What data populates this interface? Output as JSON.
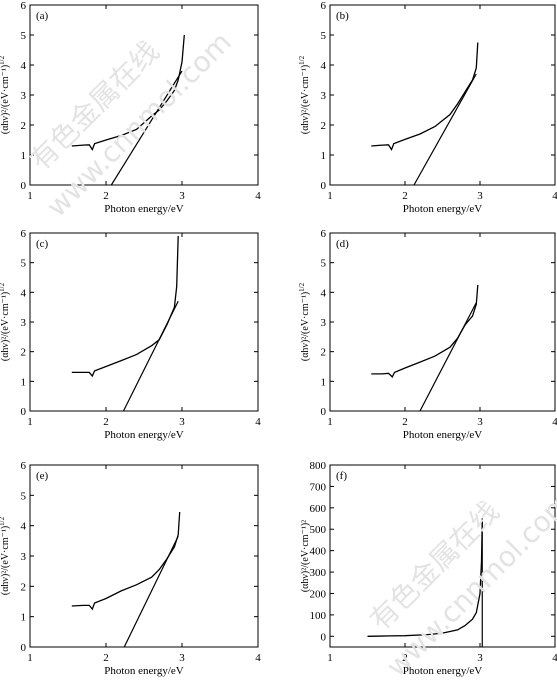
{
  "chart_data": [
    {
      "type": "line",
      "panel_label": "(a)",
      "xlabel": "Photon energy/eV",
      "ylabel": "(αhν)²/(eV·cm⁻¹)^1/2",
      "xlim": [
        1,
        4
      ],
      "ylim": [
        0,
        6
      ],
      "xticks": [
        "1",
        "2",
        "3",
        "4"
      ],
      "yticks": [
        "0",
        "1",
        "2",
        "3",
        "4",
        "5",
        "6"
      ],
      "grid": false,
      "curve": [
        [
          1.55,
          1.3
        ],
        [
          1.7,
          1.33
        ],
        [
          1.78,
          1.34
        ],
        [
          1.82,
          1.18
        ],
        [
          1.85,
          1.38
        ],
        [
          2.0,
          1.5
        ],
        [
          2.2,
          1.65
        ],
        [
          2.4,
          1.85
        ],
        [
          2.6,
          2.3
        ],
        [
          2.7,
          2.5
        ],
        [
          2.8,
          2.8
        ],
        [
          2.9,
          3.15
        ],
        [
          2.95,
          3.5
        ],
        [
          3.0,
          4.1
        ],
        [
          3.03,
          5.0
        ]
      ],
      "tangent": [
        [
          2.07,
          0
        ],
        [
          3.0,
          3.8
        ]
      ]
    },
    {
      "type": "line",
      "panel_label": "(b)",
      "xlabel": "Photon energy/eV",
      "ylabel": "(αhν)²/(eV·cm⁻¹)^1/2",
      "xlim": [
        1,
        4
      ],
      "ylim": [
        0,
        6
      ],
      "xticks": [
        "1",
        "2",
        "3",
        "4"
      ],
      "yticks": [
        "0",
        "1",
        "2",
        "3",
        "4",
        "5",
        "6"
      ],
      "grid": false,
      "curve": [
        [
          1.55,
          1.3
        ],
        [
          1.7,
          1.33
        ],
        [
          1.78,
          1.34
        ],
        [
          1.82,
          1.18
        ],
        [
          1.85,
          1.38
        ],
        [
          2.0,
          1.52
        ],
        [
          2.2,
          1.7
        ],
        [
          2.4,
          1.95
        ],
        [
          2.6,
          2.35
        ],
        [
          2.7,
          2.7
        ],
        [
          2.8,
          3.1
        ],
        [
          2.9,
          3.5
        ],
        [
          2.95,
          3.9
        ],
        [
          2.97,
          4.75
        ]
      ],
      "tangent": [
        [
          2.12,
          0
        ],
        [
          2.95,
          3.7
        ]
      ]
    },
    {
      "type": "line",
      "panel_label": "(c)",
      "xlabel": "Photon energy/eV",
      "ylabel": "(αhν)²/(eV·cm⁻¹)^1/2",
      "xlim": [
        1,
        4
      ],
      "ylim": [
        0,
        6
      ],
      "xticks": [
        "1",
        "2",
        "3",
        "4"
      ],
      "yticks": [
        "0",
        "1",
        "2",
        "3",
        "4",
        "5",
        "6"
      ],
      "grid": false,
      "curve": [
        [
          1.55,
          1.3
        ],
        [
          1.7,
          1.3
        ],
        [
          1.78,
          1.3
        ],
        [
          1.82,
          1.18
        ],
        [
          1.85,
          1.35
        ],
        [
          2.0,
          1.5
        ],
        [
          2.2,
          1.7
        ],
        [
          2.4,
          1.9
        ],
        [
          2.6,
          2.2
        ],
        [
          2.7,
          2.4
        ],
        [
          2.8,
          2.9
        ],
        [
          2.9,
          3.5
        ],
        [
          2.93,
          4.2
        ],
        [
          2.95,
          5.9
        ]
      ],
      "tangent": [
        [
          2.23,
          0
        ],
        [
          2.95,
          3.7
        ]
      ]
    },
    {
      "type": "line",
      "panel_label": "(d)",
      "xlabel": "Photon energy/eV",
      "ylabel": "(αhν)²/(eV·cm⁻¹)^1/2",
      "xlim": [
        1,
        4
      ],
      "ylim": [
        0,
        6
      ],
      "xticks": [
        "1",
        "2",
        "3",
        "4"
      ],
      "yticks": [
        "0",
        "1",
        "2",
        "3",
        "4",
        "5",
        "6"
      ],
      "grid": false,
      "curve": [
        [
          1.55,
          1.25
        ],
        [
          1.7,
          1.25
        ],
        [
          1.78,
          1.27
        ],
        [
          1.83,
          1.15
        ],
        [
          1.86,
          1.3
        ],
        [
          2.0,
          1.45
        ],
        [
          2.2,
          1.65
        ],
        [
          2.4,
          1.85
        ],
        [
          2.6,
          2.15
        ],
        [
          2.7,
          2.45
        ],
        [
          2.8,
          2.9
        ],
        [
          2.9,
          3.2
        ],
        [
          2.95,
          3.6
        ],
        [
          2.97,
          4.25
        ]
      ],
      "tangent": [
        [
          2.2,
          0
        ],
        [
          2.95,
          3.65
        ]
      ]
    },
    {
      "type": "line",
      "panel_label": "(e)",
      "xlabel": "Photon energy/eV",
      "ylabel": "(αhν)²/(eV·cm⁻¹)^1/2",
      "xlim": [
        1,
        4
      ],
      "ylim": [
        0,
        6
      ],
      "xticks": [
        "1",
        "2",
        "3",
        "4"
      ],
      "yticks": [
        "0",
        "1",
        "2",
        "3",
        "4",
        "5",
        "6"
      ],
      "grid": false,
      "curve": [
        [
          1.55,
          1.35
        ],
        [
          1.7,
          1.37
        ],
        [
          1.78,
          1.37
        ],
        [
          1.82,
          1.25
        ],
        [
          1.85,
          1.45
        ],
        [
          2.0,
          1.6
        ],
        [
          2.2,
          1.85
        ],
        [
          2.4,
          2.05
        ],
        [
          2.6,
          2.3
        ],
        [
          2.7,
          2.55
        ],
        [
          2.8,
          2.9
        ],
        [
          2.9,
          3.3
        ],
        [
          2.95,
          3.7
        ],
        [
          2.97,
          4.45
        ]
      ],
      "tangent": [
        [
          2.24,
          0
        ],
        [
          2.95,
          3.65
        ]
      ]
    },
    {
      "type": "line",
      "panel_label": "(f)",
      "xlabel": "Photon energy/eV",
      "ylabel": "(αhν)²/(eV·cm⁻¹)²",
      "xlim": [
        1,
        4
      ],
      "ylim": [
        -50,
        800
      ],
      "xticks": [
        "1",
        "2",
        "3",
        "4"
      ],
      "yticks": [
        "0",
        "100",
        "200",
        "300",
        "400",
        "500",
        "600",
        "700",
        "800"
      ],
      "grid": false,
      "curve": [
        [
          1.5,
          0
        ],
        [
          1.8,
          2
        ],
        [
          2.0,
          3
        ],
        [
          2.3,
          8
        ],
        [
          2.5,
          15
        ],
        [
          2.7,
          30
        ],
        [
          2.8,
          50
        ],
        [
          2.9,
          80
        ],
        [
          2.95,
          110
        ],
        [
          3.0,
          200
        ],
        [
          3.02,
          350
        ],
        [
          3.03,
          550
        ]
      ],
      "tangent": [
        [
          3.03,
          -50
        ],
        [
          3.03,
          550
        ]
      ]
    }
  ]
}
